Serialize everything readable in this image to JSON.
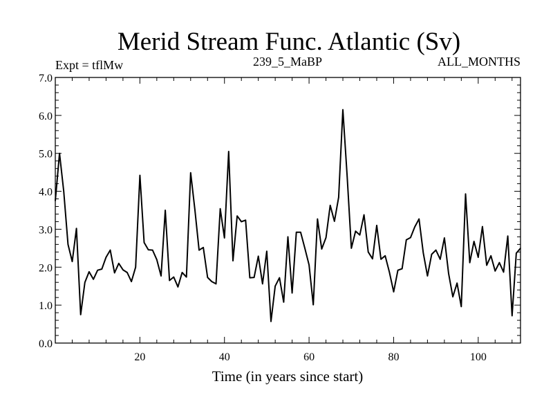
{
  "chart_data": {
    "type": "line",
    "title": "Merid Stream Func. Atlantic (Sv)",
    "subtitle_left": "Expt = tflMw",
    "subtitle_center": "239_5_MaBP",
    "subtitle_right": "ALL_MONTHS",
    "xlabel": "Time (in years since start)",
    "ylabel": "",
    "xlim": [
      0,
      110
    ],
    "ylim": [
      0,
      7
    ],
    "x_ticks": [
      20,
      40,
      60,
      80,
      100
    ],
    "x_tick_labels": [
      "20",
      "40",
      "60",
      "80",
      "100"
    ],
    "y_ticks": [
      0,
      1,
      2,
      3,
      4,
      5,
      6,
      7
    ],
    "y_tick_labels": [
      "0.0",
      "1.0",
      "2.0",
      "3.0",
      "4.0",
      "5.0",
      "6.0",
      "7.0"
    ],
    "grid": false,
    "series": [
      {
        "name": "Merid Stream Func. Atlantic",
        "color": "#000000",
        "x": [
          0,
          1,
          2,
          3,
          4,
          5,
          6,
          7,
          8,
          9,
          10,
          11,
          12,
          13,
          14,
          15,
          16,
          17,
          18,
          19,
          20,
          21,
          22,
          23,
          24,
          25,
          26,
          27,
          28,
          29,
          30,
          31,
          32,
          33,
          34,
          35,
          36,
          37,
          38,
          39,
          40,
          41,
          42,
          43,
          44,
          45,
          46,
          47,
          48,
          49,
          50,
          51,
          52,
          53,
          54,
          55,
          56,
          57,
          58,
          59,
          60,
          61,
          62,
          63,
          64,
          65,
          66,
          67,
          68,
          69,
          70,
          71,
          72,
          73,
          74,
          75,
          76,
          77,
          78,
          79,
          80,
          81,
          82,
          83,
          84,
          85,
          86,
          87,
          88,
          89,
          90,
          91,
          92,
          93,
          94,
          95,
          96,
          97,
          98,
          99,
          100,
          101,
          102,
          103,
          104,
          105,
          106,
          107,
          108,
          109,
          110
        ],
        "values": [
          3.75,
          5.0,
          4.0,
          2.6,
          2.15,
          3.02,
          0.75,
          1.6,
          1.88,
          1.68,
          1.92,
          1.95,
          2.26,
          2.45,
          1.85,
          2.1,
          1.93,
          1.86,
          1.62,
          2.0,
          4.42,
          2.65,
          2.46,
          2.45,
          2.2,
          1.77,
          3.5,
          1.65,
          1.74,
          1.48,
          1.86,
          1.74,
          4.49,
          3.52,
          2.45,
          2.52,
          1.73,
          1.62,
          1.56,
          3.54,
          2.77,
          5.05,
          2.17,
          3.35,
          3.2,
          3.24,
          1.72,
          1.73,
          2.29,
          1.56,
          2.42,
          0.57,
          1.5,
          1.72,
          1.08,
          2.8,
          1.32,
          2.92,
          2.92,
          2.5,
          2.06,
          1.01,
          3.27,
          2.48,
          2.78,
          3.63,
          3.21,
          3.84,
          6.15,
          4.4,
          2.5,
          2.95,
          2.85,
          3.38,
          2.4,
          2.22,
          3.1,
          2.21,
          2.3,
          1.87,
          1.35,
          1.92,
          1.96,
          2.72,
          2.78,
          3.06,
          3.27,
          2.38,
          1.77,
          2.34,
          2.45,
          2.21,
          2.77,
          1.83,
          1.22,
          1.58,
          0.96,
          3.93,
          2.12,
          2.68,
          2.26,
          3.07,
          2.05,
          2.3,
          1.9,
          2.12,
          1.87,
          2.82,
          0.72,
          2.37,
          2.5
        ]
      }
    ]
  }
}
